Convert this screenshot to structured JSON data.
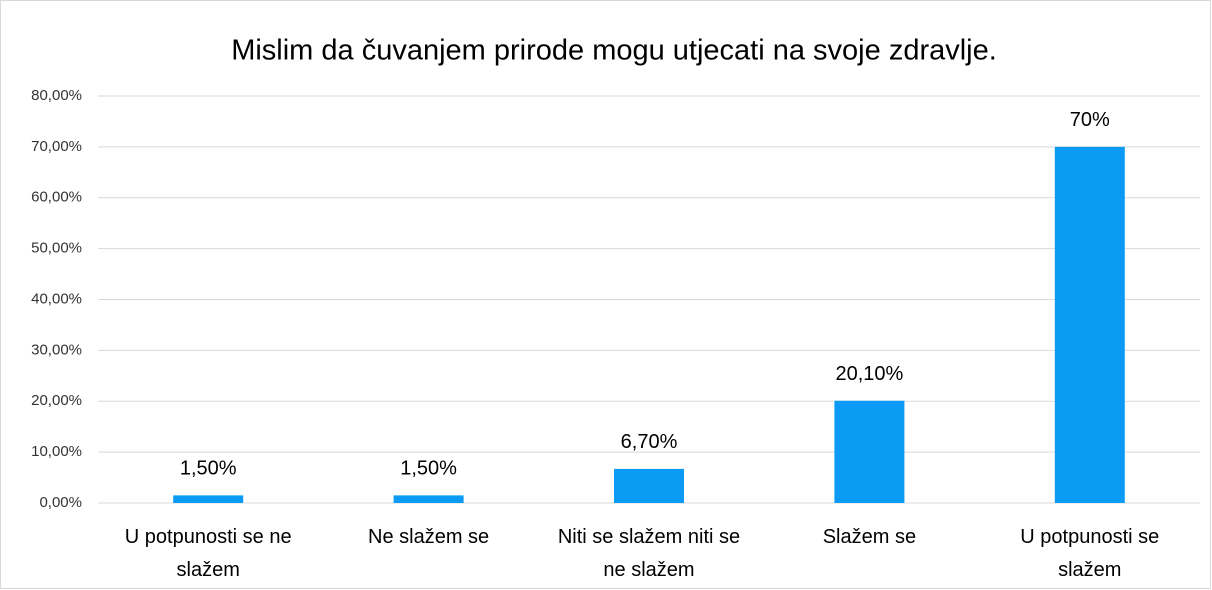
{
  "chart_data": {
    "type": "bar",
    "title": "Mislim da čuvanjem prirode mogu utjecati na svoje zdravlje.",
    "categories": [
      "U potpunosti se ne slažem",
      "Ne slažem se",
      "Niti se slažem niti se ne slažem",
      "Slažem se",
      "U potpunosti se slažem"
    ],
    "values": [
      1.5,
      1.5,
      6.7,
      20.1,
      70
    ],
    "value_labels": [
      "1,50%",
      "1,50%",
      "6,70%",
      "20,10%",
      "70%"
    ],
    "color": "#0b9bf5",
    "ylim": [
      0,
      80
    ],
    "yticks": [
      {
        "value": 0,
        "label": "0,00%"
      },
      {
        "value": 10,
        "label": "10,00%"
      },
      {
        "value": 20,
        "label": "20,00%"
      },
      {
        "value": 30,
        "label": "30,00%"
      },
      {
        "value": 40,
        "label": "40,00%"
      },
      {
        "value": 50,
        "label": "50,00%"
      },
      {
        "value": 60,
        "label": "60,00%"
      },
      {
        "value": 70,
        "label": "70,00%"
      },
      {
        "value": 80,
        "label": "80,00%"
      }
    ],
    "grid": true
  }
}
